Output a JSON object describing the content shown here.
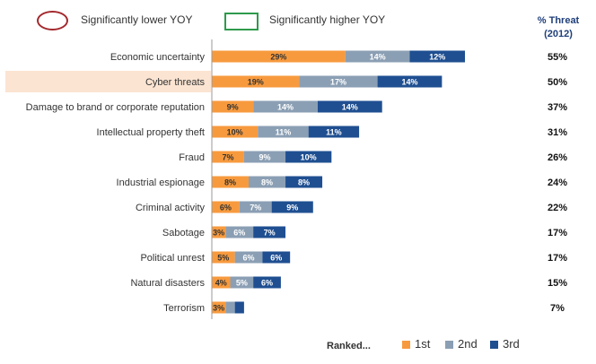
{
  "legend": {
    "lower_label": "Significantly lower YOY",
    "higher_label": "Significantly higher YOY",
    "lower_color": "#a3282d",
    "higher_color": "#2e9a4c"
  },
  "pct_header": {
    "line1": "% Threat",
    "line2": "(2012)"
  },
  "bottom_legend": {
    "ranked_label": "Ranked...",
    "rank1": "1st",
    "rank2": "2nd",
    "rank3": "3rd"
  },
  "colors": {
    "first": "#f79a3e",
    "second": "#8b9fb4",
    "third": "#1f4f91",
    "highlight": "#fbe4d2"
  },
  "chart_data": {
    "type": "bar",
    "orientation": "horizontal",
    "stacked": true,
    "highlighted_category": "Cyber threats",
    "categories": [
      "Economic uncertainty",
      "Cyber threats",
      "Damage to brand or corporate reputation",
      "Intellectual property theft",
      "Fraud",
      "Industrial espionage",
      "Criminal activity",
      "Sabotage",
      "Political unrest",
      "Natural disasters",
      "Terrorism"
    ],
    "series": [
      {
        "name": "1st",
        "values": [
          29,
          19,
          9,
          10,
          7,
          8,
          6,
          3,
          5,
          4,
          3
        ],
        "labels": [
          "29%",
          "19%",
          "9%",
          "10%",
          "7%",
          "8%",
          "6%",
          "3%",
          "5%",
          "4%",
          "3%"
        ]
      },
      {
        "name": "2nd",
        "values": [
          14,
          17,
          14,
          11,
          9,
          8,
          7,
          6,
          6,
          5,
          2
        ],
        "labels": [
          "14%",
          "17%",
          "14%",
          "11%",
          "9%",
          "8%",
          "7%",
          "6%",
          "6%",
          "5%",
          ""
        ]
      },
      {
        "name": "3rd",
        "values": [
          12,
          14,
          14,
          11,
          10,
          8,
          9,
          7,
          6,
          6,
          2
        ],
        "labels": [
          "12%",
          "14%",
          "14%",
          "11%",
          "10%",
          "8%",
          "9%",
          "7%",
          "6%",
          "6%",
          ""
        ]
      }
    ],
    "totals": [
      "55%",
      "50%",
      "37%",
      "31%",
      "26%",
      "24%",
      "22%",
      "17%",
      "17%",
      "15%",
      "7%"
    ],
    "xlim": [
      0,
      55
    ]
  }
}
